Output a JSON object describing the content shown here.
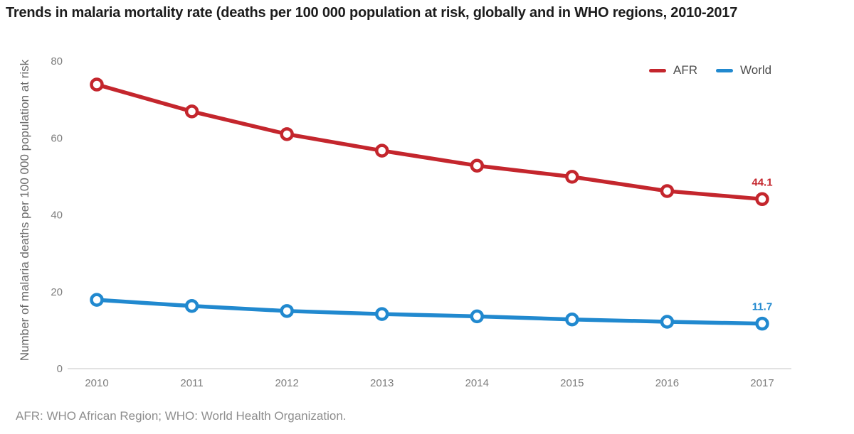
{
  "title": "Trends in malaria mortality rate (deaths per 100 000 population at risk, globally and in WHO regions, 2010-2017",
  "footnote": "AFR: WHO African Region; WHO: World Health Organization.",
  "chart_data": {
    "type": "line",
    "categories": [
      "2010",
      "2011",
      "2012",
      "2013",
      "2014",
      "2015",
      "2016",
      "2017"
    ],
    "series": [
      {
        "name": "AFR",
        "color": "#C4262D",
        "values": [
          73.9,
          66.9,
          61.0,
          56.7,
          52.8,
          49.9,
          46.2,
          44.1
        ],
        "end_label": "44.1"
      },
      {
        "name": "World",
        "color": "#2189CF",
        "values": [
          17.9,
          16.3,
          15.0,
          14.2,
          13.6,
          12.8,
          12.2,
          11.7
        ],
        "end_label": "11.7"
      }
    ],
    "xlabel": "",
    "ylabel": "Number of malaria deaths per 100 000 population at risk",
    "ylim": [
      0,
      80
    ],
    "yticks": [
      0,
      20,
      40,
      60,
      80
    ],
    "grid": false,
    "legend_position": "top-right",
    "marker": "open-circle",
    "axis_text_color": "#7d7d7d",
    "baseline_color": "#d9d9d9"
  }
}
